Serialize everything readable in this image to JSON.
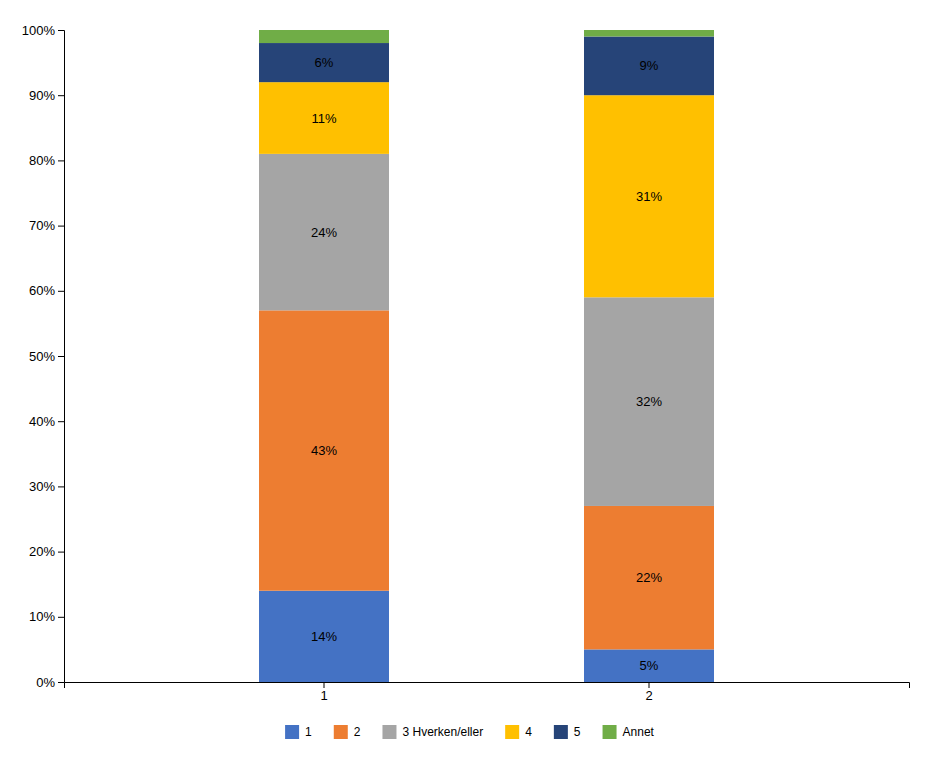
{
  "chart_data": {
    "type": "bar",
    "stacked": true,
    "data_labels": true,
    "grid": false,
    "legend": "bottom",
    "categories": [
      "1",
      "2"
    ],
    "series": [
      {
        "name": "1",
        "color": "#4472C4",
        "values": [
          14,
          5
        ],
        "value_labels": [
          "14%",
          "5%"
        ]
      },
      {
        "name": "2",
        "color": "#ED7D31",
        "values": [
          43,
          22
        ],
        "value_labels": [
          "43%",
          "22%"
        ]
      },
      {
        "name": "3 Hverken/eller",
        "color": "#A5A5A5",
        "values": [
          24,
          32
        ],
        "value_labels": [
          "24%",
          "32%"
        ]
      },
      {
        "name": "4",
        "color": "#FFC000",
        "values": [
          11,
          31
        ],
        "value_labels": [
          "11%",
          "31%"
        ]
      },
      {
        "name": "5",
        "color": "#264478",
        "values": [
          6,
          9
        ],
        "value_labels": [
          "6%",
          "9%"
        ]
      },
      {
        "name": "Annet",
        "color": "#70AD47",
        "values": [
          2,
          1
        ],
        "value_labels": [
          null,
          null
        ]
      }
    ],
    "ylim": [
      0,
      100
    ],
    "yticks": [
      {
        "value": 0,
        "label": "0%"
      },
      {
        "value": 10,
        "label": "10%"
      },
      {
        "value": 20,
        "label": "20%"
      },
      {
        "value": 30,
        "label": "30%"
      },
      {
        "value": 40,
        "label": "40%"
      },
      {
        "value": 50,
        "label": "50%"
      },
      {
        "value": 60,
        "label": "60%"
      },
      {
        "value": 70,
        "label": "70%"
      },
      {
        "value": 80,
        "label": "80%"
      },
      {
        "value": 90,
        "label": "90%"
      },
      {
        "value": 100,
        "label": "100%"
      }
    ]
  }
}
